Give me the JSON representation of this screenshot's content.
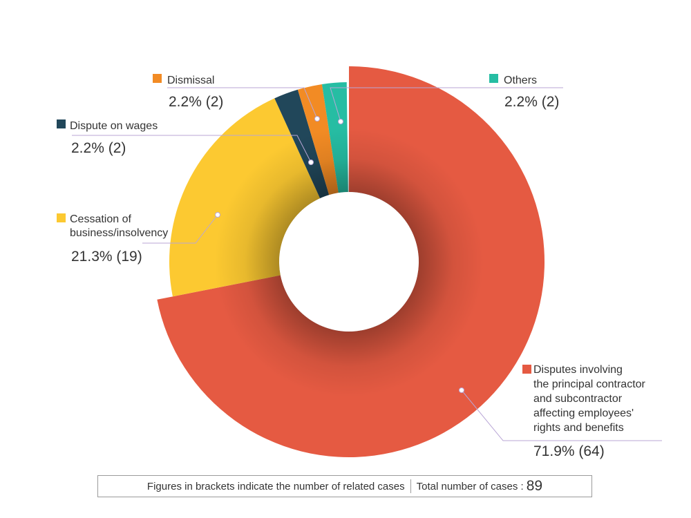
{
  "chart_data": {
    "type": "pie",
    "total": 89,
    "slices": [
      {
        "key": "contractor",
        "name": "Disputes involving the principal contractor and subcontractor affecting employees' rights and benefits",
        "name_lines": [
          "Disputes involving",
          "the principal contractor",
          "and subcontractor",
          "affecting employees'",
          "rights and benefits"
        ],
        "percent": 71.9,
        "count": 64,
        "value_label": "71.9% (64)",
        "color": "#E55A42"
      },
      {
        "key": "cessation",
        "name": "Cessation of business/insolvency",
        "name_lines": [
          "Cessation of",
          "business/insolvency"
        ],
        "percent": 21.3,
        "count": 19,
        "value_label": "21.3% (19)",
        "color": "#FCC931"
      },
      {
        "key": "wages",
        "name": "Dispute on wages",
        "name_lines": [
          "Dispute on wages"
        ],
        "percent": 2.2,
        "count": 2,
        "value_label": "2.2% (2)",
        "color": "#21475A"
      },
      {
        "key": "dismissal",
        "name": "Dismissal",
        "name_lines": [
          "Dismissal"
        ],
        "percent": 2.2,
        "count": 2,
        "value_label": "2.2% (2)",
        "color": "#F28B24"
      },
      {
        "key": "others",
        "name": "Others",
        "name_lines": [
          "Others"
        ],
        "percent": 2.2,
        "count": 2,
        "value_label": "2.2% (2)",
        "color": "#26BDA3"
      }
    ]
  },
  "footer": {
    "note": "Figures in brackets indicate the number of related cases",
    "total_label": "Total number of cases :",
    "total_value": "89"
  }
}
